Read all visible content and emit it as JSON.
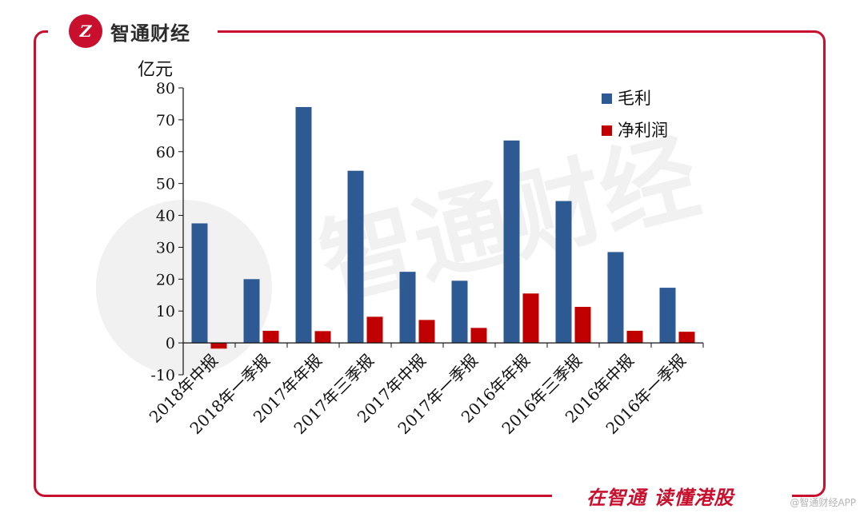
{
  "brand": {
    "logo_mark": "Z",
    "name": "智通财经",
    "slogan": "在智通  读懂港股",
    "credit": "@智通财经APP",
    "accent_color": "#c8102e"
  },
  "chart_data": {
    "type": "bar",
    "title": "",
    "ylabel": "亿元",
    "xlabel": "",
    "ylim": [
      -10,
      80
    ],
    "yticks": [
      -10,
      0,
      10,
      20,
      30,
      40,
      50,
      60,
      70,
      80
    ],
    "grid": false,
    "legend_position": "top-right",
    "categories": [
      "2018年中报",
      "2018年一季报",
      "2017年年报",
      "2017年三季报",
      "2017年中报",
      "2017年一季报",
      "2016年年报",
      "2016年三季报",
      "2016年中报",
      "2016年一季报"
    ],
    "series": [
      {
        "name": "毛利",
        "color": "#2e5a94",
        "values": [
          37.5,
          20,
          74,
          54,
          22.3,
          19.5,
          63.5,
          44.5,
          28.5,
          17.3
        ]
      },
      {
        "name": "净利润",
        "color": "#c00000",
        "values": [
          -1.8,
          3.8,
          3.7,
          8.2,
          7.2,
          4.7,
          15.5,
          11.3,
          3.8,
          3.5
        ]
      }
    ]
  }
}
